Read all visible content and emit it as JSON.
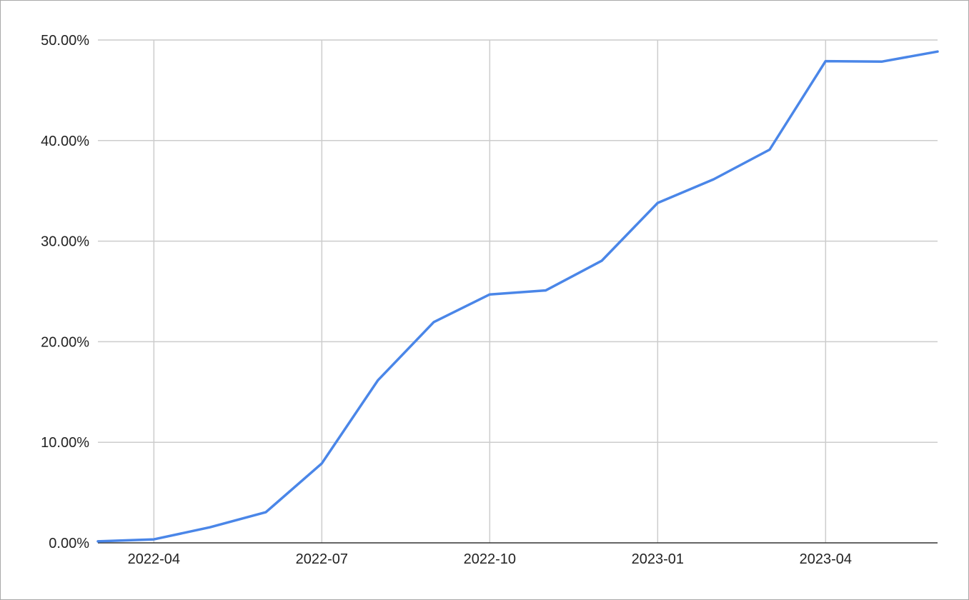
{
  "chart_data": {
    "type": "line",
    "x": [
      "2022-03",
      "2022-04",
      "2022-05",
      "2022-06",
      "2022-07",
      "2022-08",
      "2022-09",
      "2022-10",
      "2022-11",
      "2022-12",
      "2023-01",
      "2023-02",
      "2023-03",
      "2023-04",
      "2023-05",
      "2023-06"
    ],
    "series": [
      {
        "values": [
          0.15,
          0.35,
          1.55,
          3.05,
          7.9,
          16.15,
          21.95,
          24.7,
          25.1,
          28.05,
          33.8,
          36.15,
          39.1,
          47.9,
          47.85,
          48.85
        ],
        "color": "#4a86e8"
      }
    ],
    "x_ticks": [
      "2022-04",
      "2022-07",
      "2022-10",
      "2023-01",
      "2023-04"
    ],
    "y_ticks": [
      "0.00%",
      "10.00%",
      "20.00%",
      "30.00%",
      "40.00%",
      "50.00%"
    ],
    "ylim": [
      0,
      50
    ],
    "y_unit": "%",
    "title": "",
    "xlabel": "",
    "ylabel": "",
    "grid": true,
    "legend": "none"
  }
}
